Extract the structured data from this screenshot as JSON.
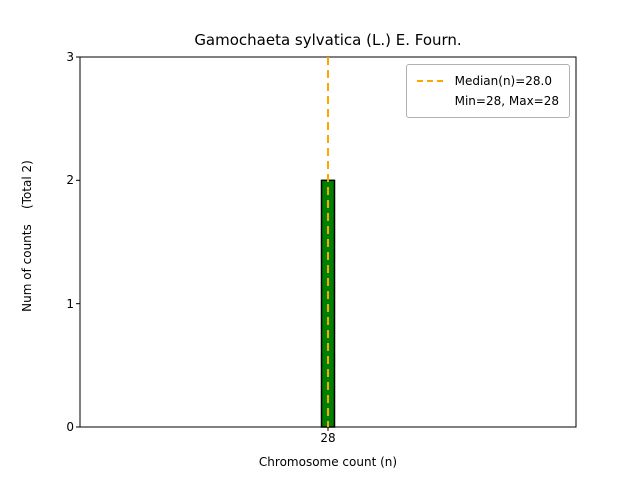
{
  "chart_data": {
    "type": "bar",
    "title": "Gamochaeta sylvatica (L.) E. Fourn.",
    "xlabel": "Chromosome count (n)",
    "ylabel": "Num of counts    (Total 2)",
    "categories": [
      28
    ],
    "values": [
      2
    ],
    "total_counts": 2,
    "ylim": [
      0,
      3
    ],
    "yticks": [
      0,
      1,
      2,
      3
    ],
    "xtick_labels": [
      "28"
    ],
    "grid": false,
    "bar_color": "#008000",
    "bar_edge_color": "#000000",
    "median_line": {
      "value": 28.0,
      "color": "#ffa500",
      "style": "dashed"
    },
    "legend": {
      "position": "upper-right",
      "entries": [
        {
          "label": "Median(n)=28.0",
          "sample": "dashed-line",
          "color": "#ffa500"
        },
        {
          "label": "Min=28, Max=28",
          "sample": "none"
        }
      ]
    }
  }
}
